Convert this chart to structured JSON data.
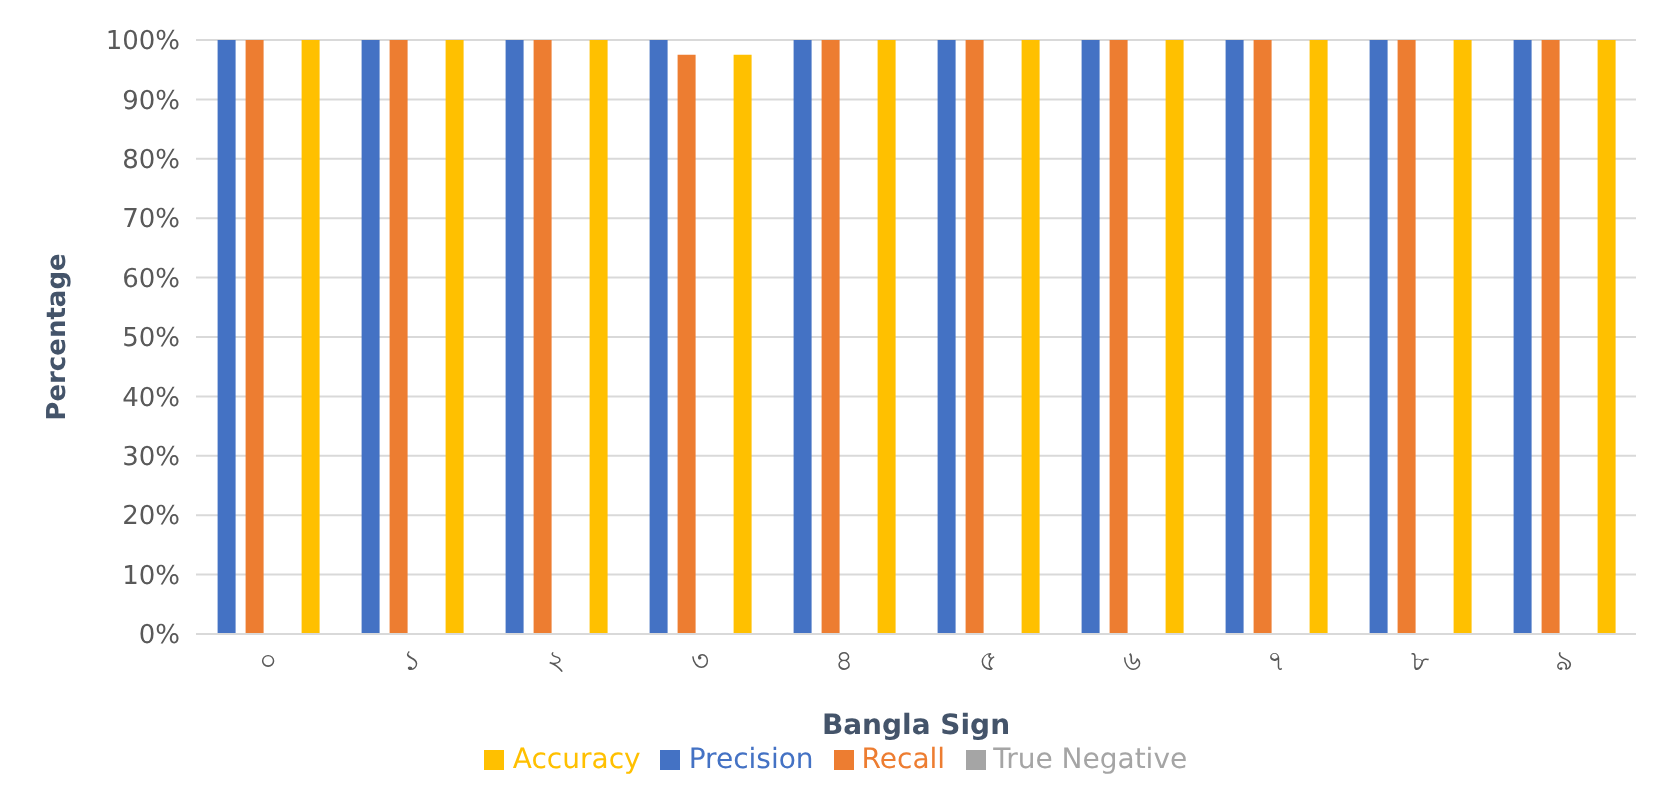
{
  "chart_data": {
    "type": "bar",
    "xlabel": "Bangla Sign",
    "ylabel": "Percentage",
    "categories": [
      "০",
      "১",
      "২",
      "৩",
      "৪",
      "৫",
      "৬",
      "৭",
      "৮",
      "৯"
    ],
    "series": [
      {
        "name": "Precision",
        "color": "#4472c4",
        "values": [
          100,
          100,
          100,
          100,
          100,
          100,
          100,
          100,
          100,
          100
        ]
      },
      {
        "name": "Recall",
        "color": "#ed7d31",
        "values": [
          100,
          100,
          100,
          97.5,
          100,
          100,
          100,
          100,
          100,
          100
        ]
      },
      {
        "name": "True Negative",
        "color": "#a5a5a5",
        "values": [
          0,
          0,
          0,
          0,
          0,
          0,
          0,
          0,
          0,
          0
        ]
      },
      {
        "name": "Accuracy",
        "color": "#ffc000",
        "values": [
          100,
          100,
          100,
          97.5,
          100,
          100,
          100,
          100,
          100,
          100
        ]
      }
    ],
    "ylim": [
      0,
      100
    ],
    "yticks": [
      {
        "value": 0,
        "label": "0%"
      },
      {
        "value": 10,
        "label": "10%"
      },
      {
        "value": 20,
        "label": "20%"
      },
      {
        "value": 30,
        "label": "30%"
      },
      {
        "value": 40,
        "label": "40%"
      },
      {
        "value": 50,
        "label": "50%"
      },
      {
        "value": 60,
        "label": "60%"
      },
      {
        "value": 70,
        "label": "70%"
      },
      {
        "value": 80,
        "label": "80%"
      },
      {
        "value": 90,
        "label": "90%"
      },
      {
        "value": 100,
        "label": "100%"
      }
    ],
    "grid": "y",
    "legend": "bottom"
  }
}
